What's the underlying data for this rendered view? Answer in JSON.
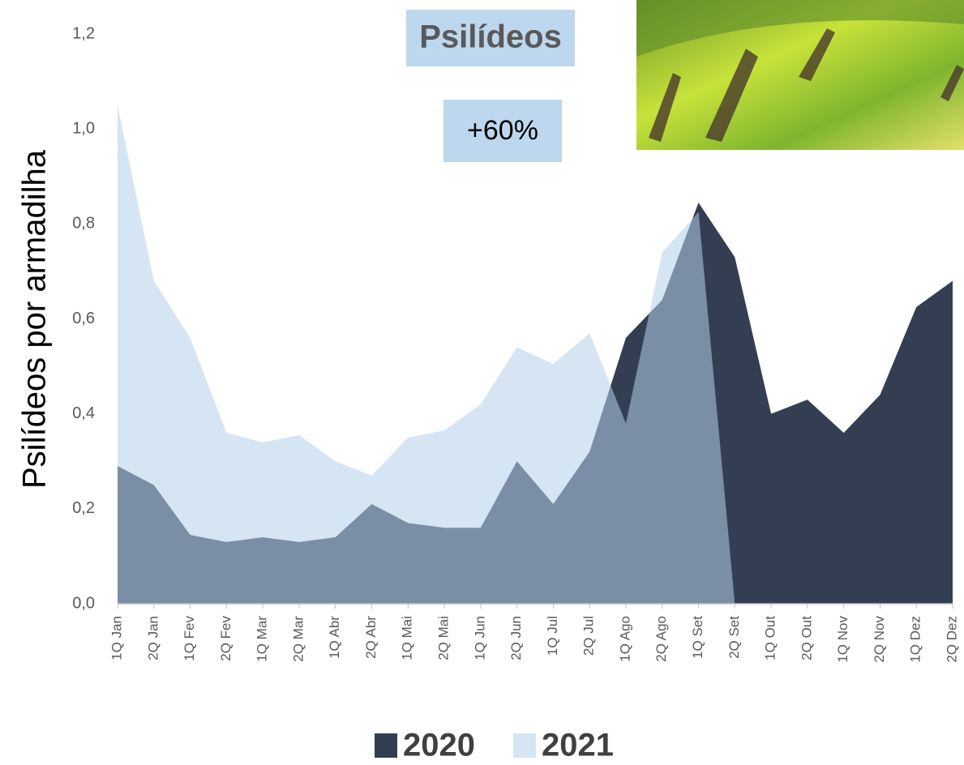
{
  "chart_data": {
    "type": "area",
    "title": "Psilídeos",
    "annotation": "+60%",
    "y_label": "Psilídeos por armadilha",
    "categories": [
      "1Q Jan",
      "2Q Jan",
      "1Q Fev",
      "2Q Fev",
      "1Q Mar",
      "2Q Mar",
      "1Q Abr",
      "2Q Abr",
      "1Q Mai",
      "2Q Mai",
      "1Q Jun",
      "2Q Jun",
      "1Q Jul",
      "2Q Jul",
      "1Q Ago",
      "2Q Ago",
      "1Q Set",
      "2Q Set",
      "1Q Out",
      "2Q Out",
      "1Q Nov",
      "2Q Nov",
      "1Q Dez",
      "2Q Dez"
    ],
    "series": [
      {
        "name": "2020",
        "color": "#343e52",
        "values": [
          0.29,
          0.25,
          0.145,
          0.13,
          0.14,
          0.13,
          0.14,
          0.21,
          0.17,
          0.16,
          0.16,
          0.3,
          0.21,
          0.32,
          0.56,
          0.64,
          0.845,
          0.73,
          0.4,
          0.43,
          0.36,
          0.44,
          0.625,
          0.68
        ]
      },
      {
        "name": "2021",
        "color": "#b4d0e9",
        "values": [
          1.05,
          0.68,
          0.56,
          0.36,
          0.34,
          0.355,
          0.3,
          0.27,
          0.35,
          0.365,
          0.42,
          0.54,
          0.505,
          0.57,
          0.38,
          0.74,
          0.825,
          0,
          null,
          null,
          null,
          null,
          null,
          null
        ]
      }
    ],
    "ylim": [
      0,
      1.2
    ],
    "yticks": [
      {
        "value": 0,
        "label": "0,0"
      },
      {
        "value": 0.2,
        "label": "0,2"
      },
      {
        "value": 0.4,
        "label": "0,4"
      },
      {
        "value": 0.6,
        "label": "0,6"
      },
      {
        "value": 0.8,
        "label": "0,8"
      },
      {
        "value": 1.0,
        "label": "1,0"
      },
      {
        "value": 1.2,
        "label": "1,2"
      }
    ],
    "grid": false,
    "legend": "bottom"
  }
}
